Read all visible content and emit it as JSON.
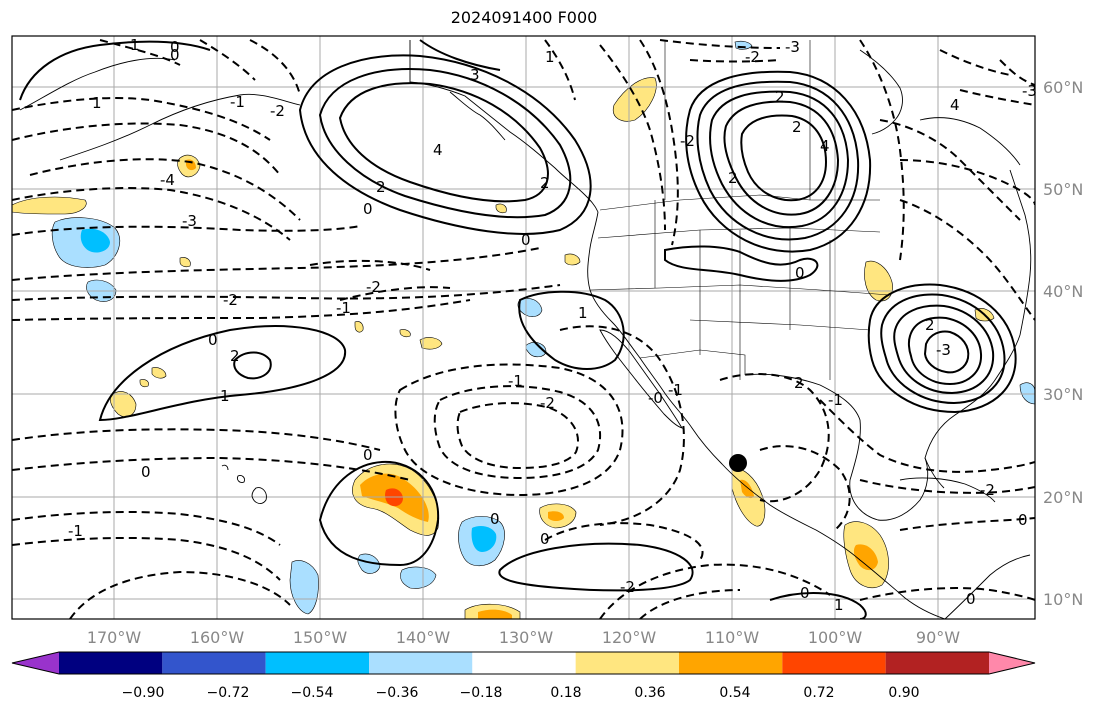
{
  "title": "2024091400 F000",
  "lat_labels": [
    "60°N",
    "50°N",
    "40°N",
    "30°N",
    "20°N",
    "10°N"
  ],
  "lon_labels": [
    "170°W",
    "160°W",
    "150°W",
    "140°W",
    "130°W",
    "120°W",
    "110°W",
    "100°W",
    "90°W"
  ],
  "colorbar": {
    "colors": [
      "#9933cc",
      "#000080",
      "#3355cc",
      "#00bfff",
      "#aadfff",
      "#ffffff",
      "#ffe680",
      "#ffa500",
      "#ff4500",
      "#b22222",
      "#ff88aa"
    ],
    "tick_labels": [
      "−0.90",
      "−0.72",
      "−0.54",
      "−0.36",
      "−0.18",
      "0.18",
      "0.36",
      "0.54",
      "0.72",
      "0.90"
    ]
  },
  "contour_labels": [
    "0",
    "1",
    "1",
    "0",
    "-1",
    "4",
    "3",
    "-2",
    "1",
    "-3",
    "2",
    "-2",
    "-4",
    "-3",
    "2",
    "2",
    "4",
    "2",
    "0",
    "-3",
    "0",
    "-2",
    "-2",
    "-1",
    "0",
    "2",
    "1",
    "0",
    "-1",
    "-2",
    "-1",
    "1",
    "-0",
    "-1",
    "0",
    "0",
    "0",
    "-2",
    "2",
    "-1",
    "-2",
    "0",
    "0",
    "2",
    "-3",
    "4",
    "-2",
    "0",
    "1",
    "2",
    "0"
  ],
  "marker": {
    "label": "storm-position"
  }
}
